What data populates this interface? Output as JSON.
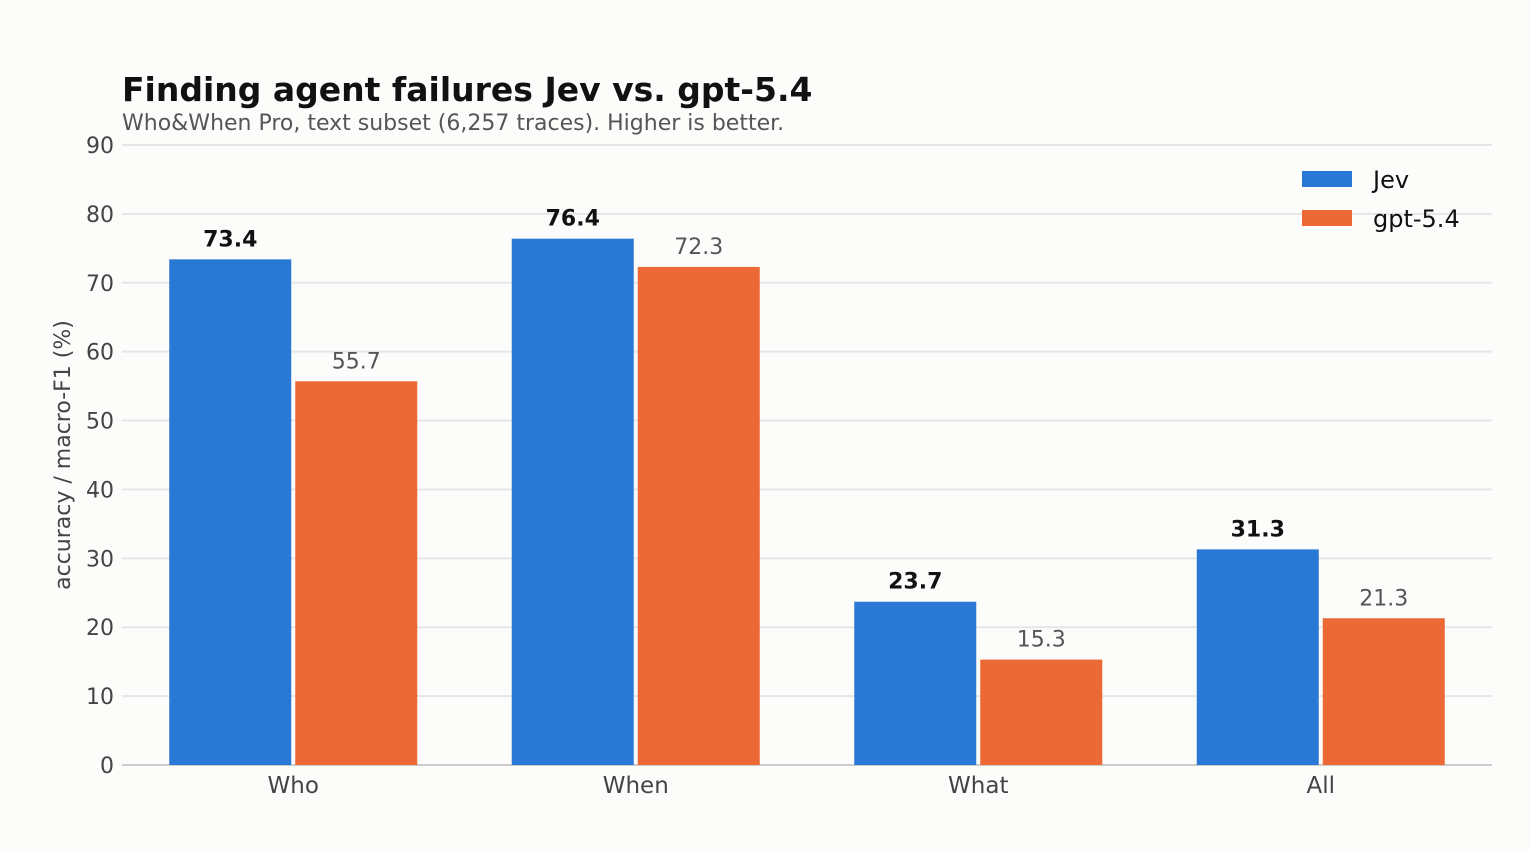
{
  "chart_data": {
    "type": "bar",
    "title": "Finding agent failures Jev vs. gpt-5.4",
    "subtitle": "Who&When Pro, text subset (6,257 traces). Higher is better.",
    "xlabel": "",
    "ylabel": "accuracy / macro-F1  (%)",
    "ylim": [
      0,
      90
    ],
    "yticks": [
      0,
      10,
      20,
      30,
      40,
      50,
      60,
      70,
      80,
      90
    ],
    "grid": true,
    "legend_position": "top-right",
    "categories": [
      "Who",
      "When",
      "What",
      "All"
    ],
    "series": [
      {
        "name": "Jev",
        "color": "#2a78d6",
        "values": [
          73.4,
          76.4,
          23.7,
          31.3
        ],
        "labels": [
          "73.4",
          "76.4",
          "23.7",
          "31.3"
        ],
        "label_style": "bold"
      },
      {
        "name": "gpt-5.4",
        "color": "#ec6935",
        "values": [
          55.7,
          72.3,
          15.3,
          21.3
        ],
        "labels": [
          "55.7",
          "72.3",
          "15.3",
          "21.3"
        ],
        "label_style": "normal"
      }
    ]
  }
}
